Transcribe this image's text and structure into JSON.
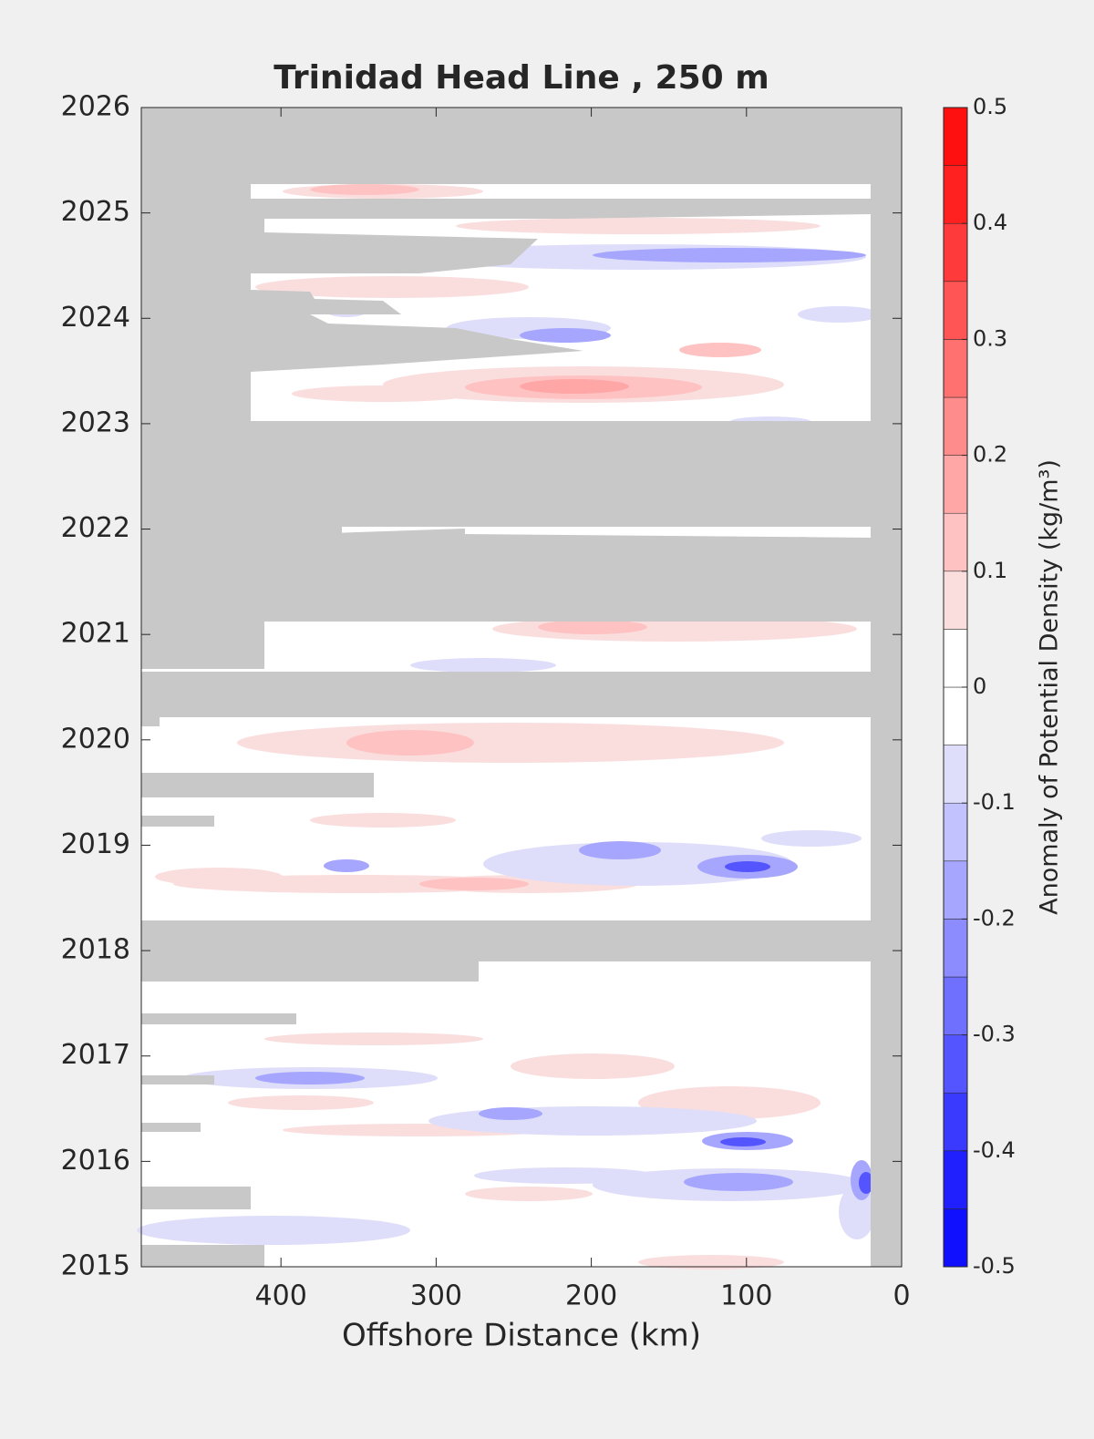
{
  "chart_data": {
    "type": "contour",
    "title": "Trinidad Head Line , 250 m",
    "x_label": "Offshore Distance (km)",
    "xlim": [
      490,
      0
    ],
    "xticks": [
      400,
      300,
      200,
      100,
      0
    ],
    "ylim": [
      2015,
      2026
    ],
    "yticks": [
      2015,
      2016,
      2017,
      2018,
      2019,
      2020,
      2021,
      2022,
      2023,
      2024,
      2025,
      2026
    ],
    "colorbar": {
      "label": "Anomaly of Potential Density (kg/m³)",
      "levels": [
        -0.5,
        -0.45,
        -0.4,
        -0.35,
        -0.3,
        -0.25,
        -0.2,
        -0.15,
        -0.1,
        -0.05,
        0,
        0.05,
        0.1,
        0.15,
        0.2,
        0.25,
        0.3,
        0.35,
        0.4,
        0.45,
        0.5
      ],
      "colors": [
        "#1010ff",
        "#2020ff",
        "#3a3aff",
        "#5555ff",
        "#7070ff",
        "#8c8cff",
        "#a6a6ff",
        "#c2c2ff",
        "#dedefa",
        "#ffffff",
        "#ffffff",
        "#fadede",
        "#ffc2c2",
        "#ffa6a6",
        "#ff8c8c",
        "#ff7070",
        "#ff5555",
        "#ff3a3a",
        "#ff2020",
        "#ff1010"
      ],
      "ticks": [
        -0.5,
        -0.4,
        -0.3,
        -0.2,
        -0.1,
        0,
        0.1,
        0.2,
        0.3,
        0.4,
        0.5
      ]
    }
  }
}
